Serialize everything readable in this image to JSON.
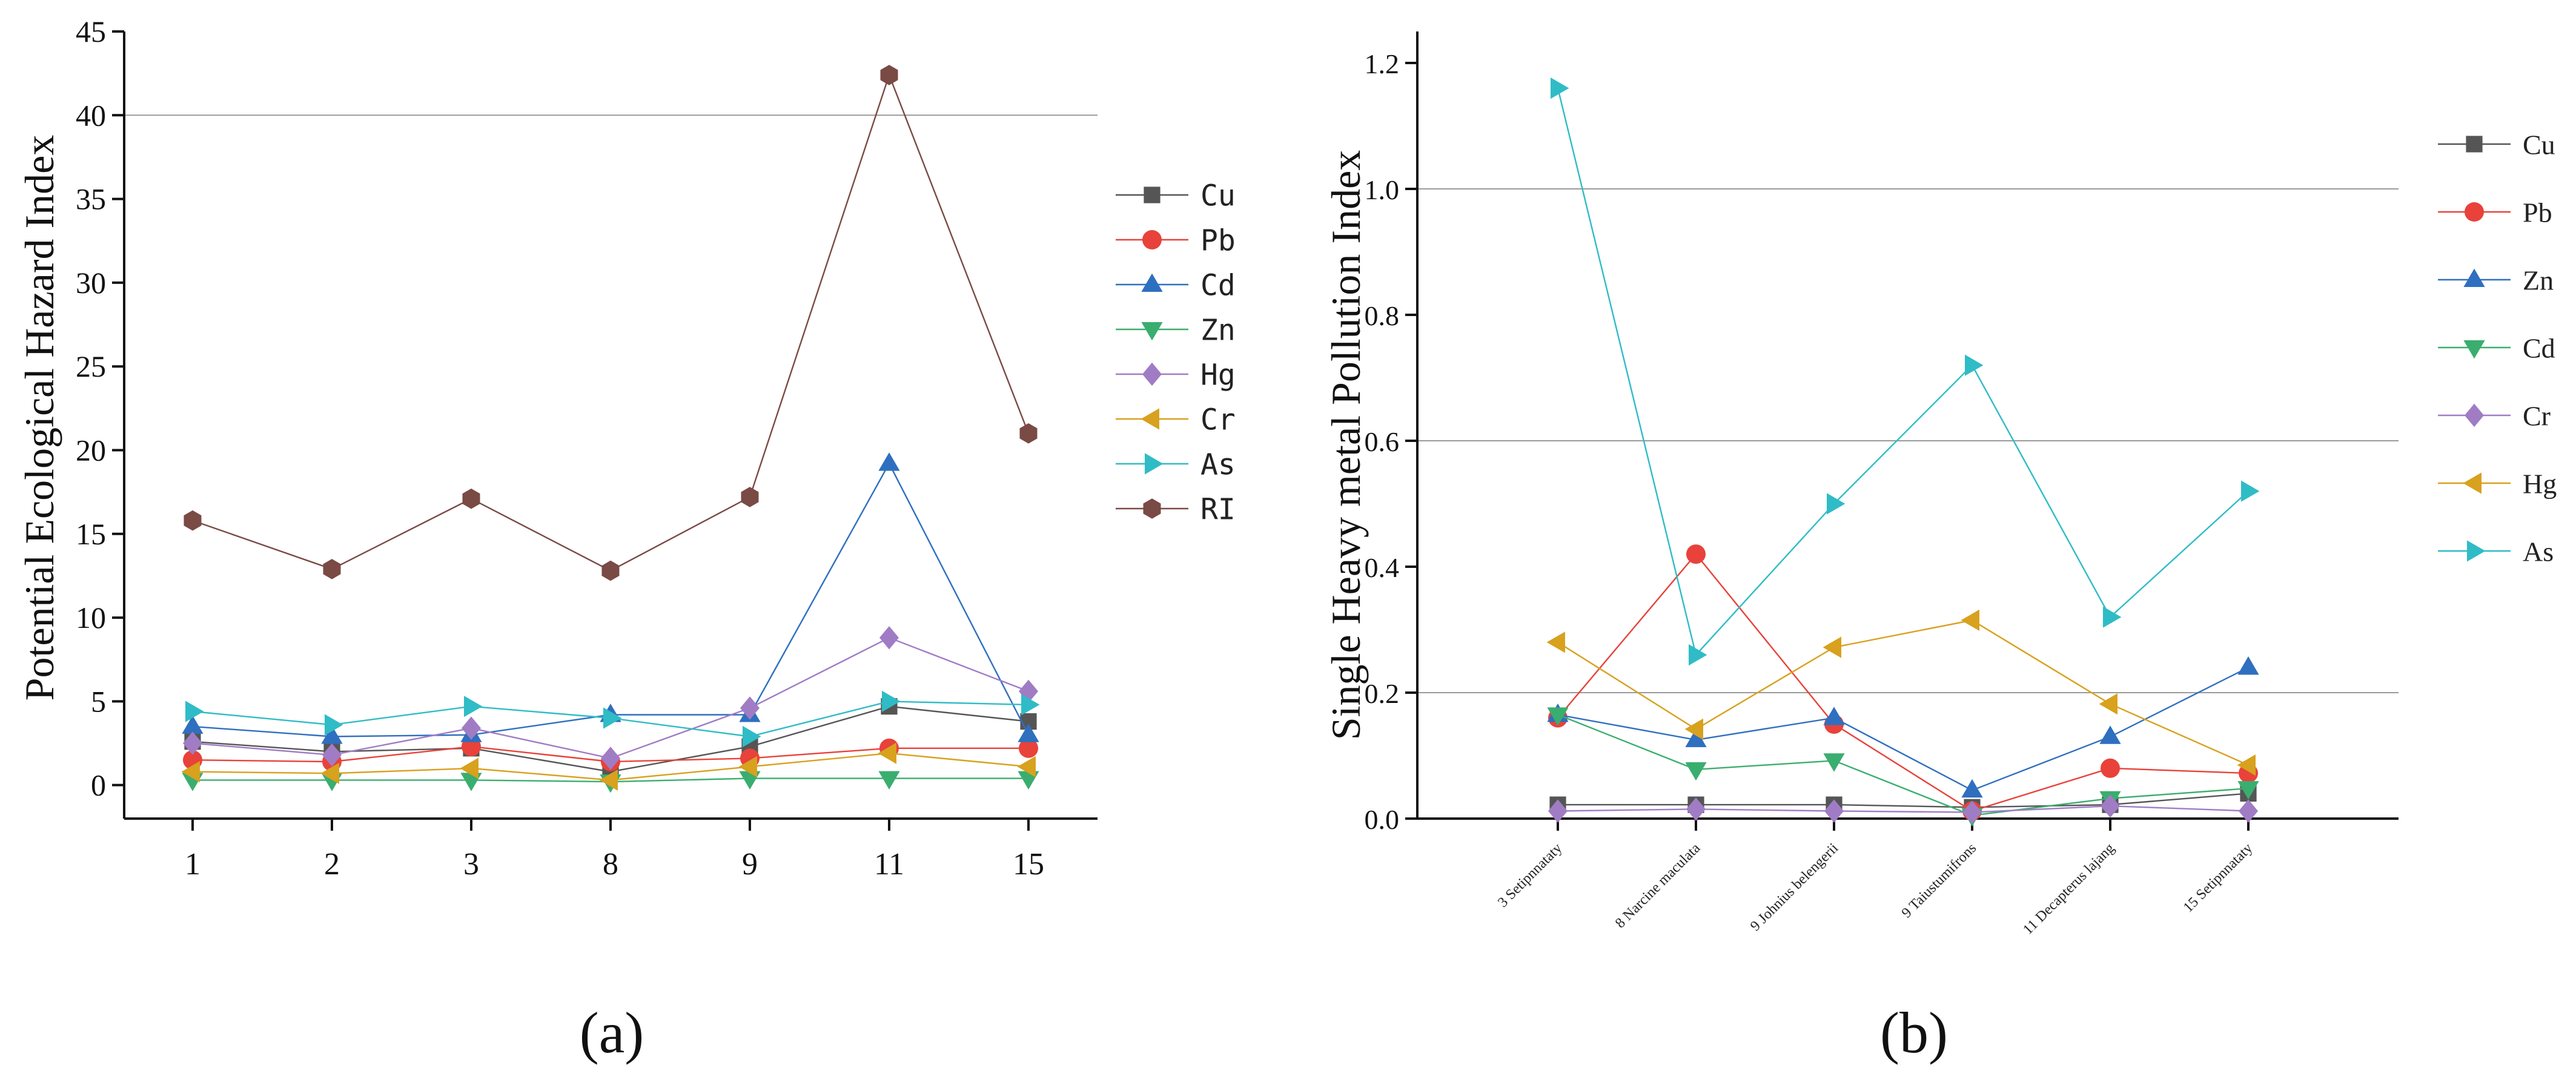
{
  "charts": [
    {
      "id": "a",
      "type": "line",
      "panel_label": "(a)",
      "ylabel": "Potential Ecological Hazard Index",
      "categories": [
        "1",
        "2",
        "3",
        "8",
        "9",
        "11",
        "15"
      ],
      "ylim": [
        -2,
        45
      ],
      "yticks": [
        0,
        5,
        10,
        15,
        20,
        25,
        30,
        35,
        40,
        45
      ],
      "reference_lines": [
        40
      ],
      "series": [
        {
          "name": "Cu",
          "color": "#555555",
          "marker": "square",
          "values": [
            2.6,
            2.0,
            2.2,
            0.8,
            2.3,
            4.7,
            3.8
          ]
        },
        {
          "name": "Pb",
          "color": "#e8423a",
          "marker": "circle",
          "values": [
            1.5,
            1.4,
            2.3,
            1.4,
            1.6,
            2.2,
            2.2
          ]
        },
        {
          "name": "Cd",
          "color": "#2f6fbf",
          "marker": "tri-up",
          "values": [
            3.5,
            2.9,
            3.0,
            4.2,
            4.2,
            19.2,
            3.0
          ]
        },
        {
          "name": "Zn",
          "color": "#3aae6e",
          "marker": "tri-down",
          "values": [
            0.3,
            0.3,
            0.3,
            0.2,
            0.4,
            0.4,
            0.4
          ]
        },
        {
          "name": "Hg",
          "color": "#a07cc5",
          "marker": "diamond",
          "values": [
            2.5,
            1.8,
            3.4,
            1.6,
            4.6,
            8.8,
            5.6
          ]
        },
        {
          "name": "Cr",
          "color": "#d8a11e",
          "marker": "tri-left",
          "values": [
            0.8,
            0.7,
            1.0,
            0.3,
            1.1,
            1.9,
            1.1
          ]
        },
        {
          "name": "As",
          "color": "#2fbcc6",
          "marker": "tri-right",
          "values": [
            4.4,
            3.6,
            4.7,
            4.0,
            2.9,
            5.0,
            4.8
          ]
        },
        {
          "name": "RI",
          "color": "#7a4a45",
          "marker": "hexagon",
          "values": [
            15.8,
            12.9,
            17.1,
            12.8,
            17.2,
            42.4,
            21.0
          ]
        }
      ]
    },
    {
      "id": "b",
      "type": "line",
      "panel_label": "(b)",
      "ylabel": "Single  Heavy metal Pollution Index",
      "categories": [
        "3 Setipnnataty",
        "8 Narcine maculata",
        "9 Johnius belengerii",
        "9 Taiustumifrons",
        "11 Decapterus lajang",
        "15 Setipnnataty"
      ],
      "ylim": [
        0,
        1.25
      ],
      "yticks": [
        "0.0",
        "0.2",
        "0.4",
        "0.6",
        "0.8",
        "1.0",
        "1.2"
      ],
      "reference_lines": [
        0.2,
        0.6,
        1.0
      ],
      "series": [
        {
          "name": "Cu",
          "color": "#555555",
          "marker": "square",
          "values": [
            0.022,
            0.022,
            0.022,
            0.018,
            0.022,
            0.04
          ]
        },
        {
          "name": "Pb",
          "color": "#e8423a",
          "marker": "circle",
          "values": [
            0.16,
            0.42,
            0.15,
            0.012,
            0.08,
            0.072
          ]
        },
        {
          "name": "Zn",
          "color": "#2f6fbf",
          "marker": "tri-up",
          "values": [
            0.165,
            0.125,
            0.16,
            0.045,
            0.13,
            0.24
          ]
        },
        {
          "name": "Cd",
          "color": "#3aae6e",
          "marker": "tri-down",
          "values": [
            0.165,
            0.078,
            0.092,
            0.005,
            0.032,
            0.048
          ]
        },
        {
          "name": "Cr",
          "color": "#a07cc5",
          "marker": "diamond",
          "values": [
            0.012,
            0.015,
            0.012,
            0.01,
            0.02,
            0.012
          ]
        },
        {
          "name": "Hg",
          "color": "#d8a11e",
          "marker": "tri-left",
          "values": [
            0.28,
            0.142,
            0.272,
            0.315,
            0.182,
            0.085
          ]
        },
        {
          "name": "As",
          "color": "#2fbcc6",
          "marker": "tri-right",
          "values": [
            1.16,
            0.26,
            0.5,
            0.72,
            0.32,
            0.52
          ]
        }
      ]
    }
  ]
}
